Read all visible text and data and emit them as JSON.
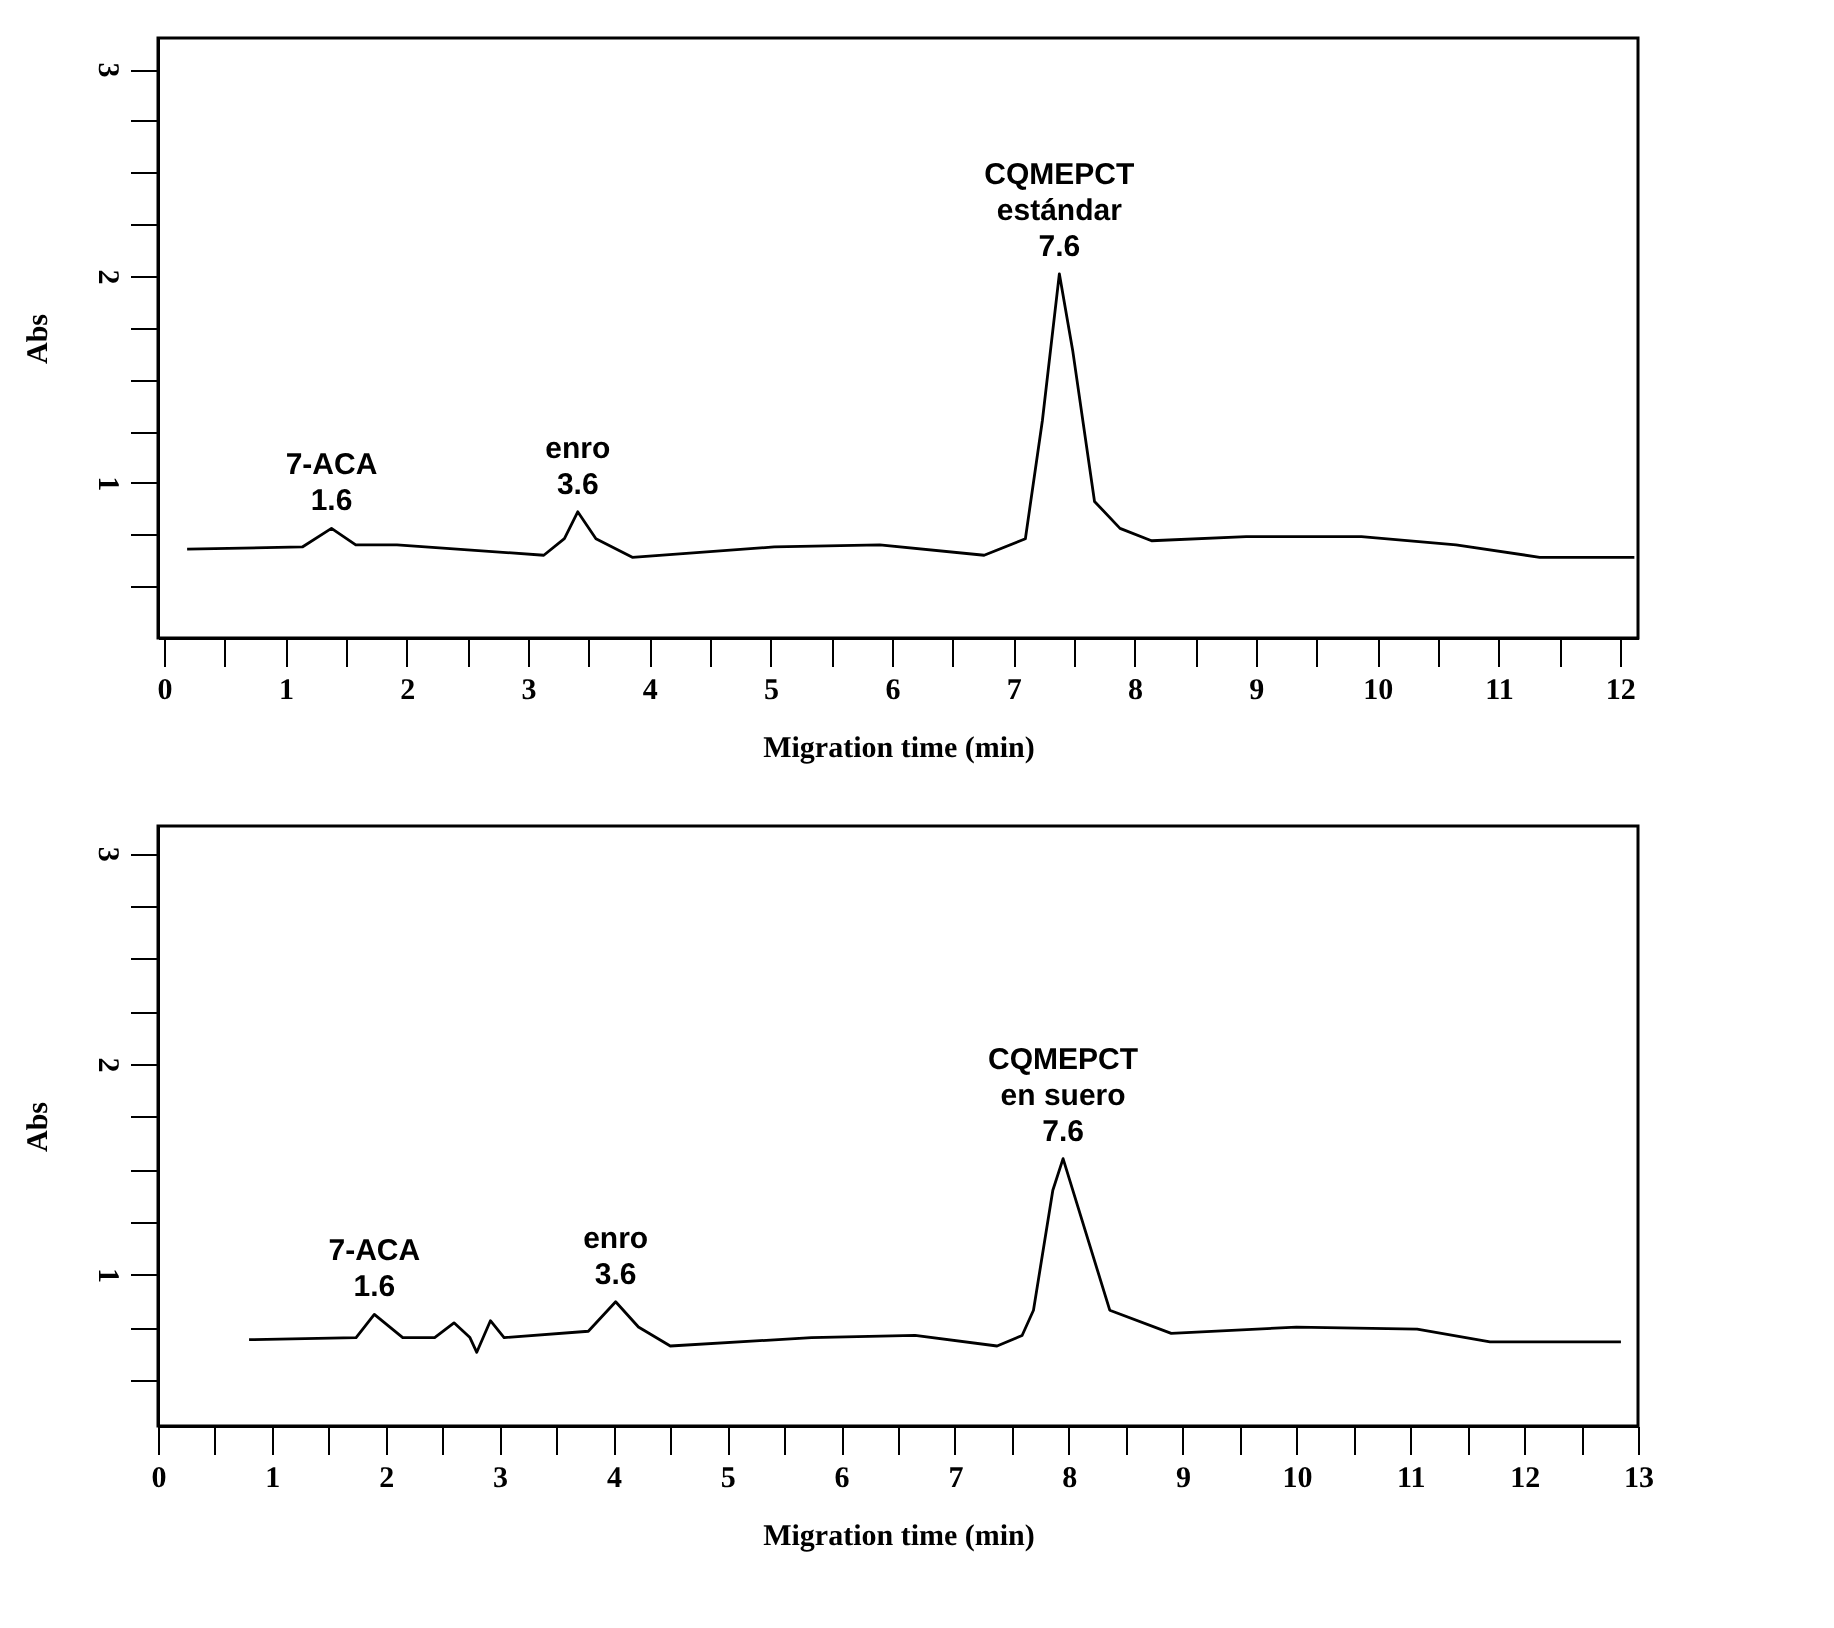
{
  "chart_data": [
    {
      "type": "line",
      "xlabel": "Migration time (min)",
      "ylabel": "Abs",
      "color": "#000000",
      "x": [
        0.19,
        1.14,
        1.38,
        1.58,
        1.92,
        3.13,
        3.3,
        3.41,
        3.56,
        3.86,
        5.03,
        5.9,
        6.76,
        7.1,
        7.24,
        7.38,
        7.49,
        7.67,
        7.88,
        8.14,
        8.92,
        9.87,
        10.65,
        11.34,
        12.12
      ],
      "values": [
        0.68,
        0.69,
        0.78,
        0.7,
        0.7,
        0.65,
        0.73,
        0.86,
        0.73,
        0.64,
        0.69,
        0.7,
        0.65,
        0.73,
        1.3,
        2.01,
        1.64,
        0.91,
        0.78,
        0.72,
        0.74,
        0.74,
        0.7,
        0.64,
        0.64
      ],
      "xlim": [
        -0.05,
        12.15
      ],
      "xticks": [
        0,
        {
          "value": 0.5,
          "label": null
        },
        1,
        {
          "value": 1.5,
          "label": null
        },
        2,
        {
          "value": 2.5,
          "label": null
        },
        3,
        {
          "value": 3.5,
          "label": null
        },
        4,
        {
          "value": 4.5,
          "label": null
        },
        5,
        {
          "value": 5.5,
          "label": null
        },
        6,
        {
          "value": 6.5,
          "label": null
        },
        7,
        {
          "value": 7.5,
          "label": null
        },
        8,
        {
          "value": 8.5,
          "label": null
        },
        9,
        {
          "value": 9.5,
          "label": null
        },
        10,
        {
          "value": 10.5,
          "label": null
        },
        11,
        {
          "value": 11.5,
          "label": null
        },
        12
      ],
      "ylim": [
        0.25,
        3.15
      ],
      "yticks": [
        {
          "value": 0.5,
          "label": null
        },
        {
          "value": 0.75,
          "label": null
        },
        1,
        {
          "value": 1.25,
          "label": null
        },
        {
          "value": 1.5,
          "label": null
        },
        {
          "value": 1.75,
          "label": null
        },
        2,
        {
          "value": 2.25,
          "label": null
        },
        {
          "value": 2.5,
          "label": null
        },
        {
          "value": 2.75,
          "label": null
        },
        3
      ],
      "annotations": [
        {
          "text": "7-ACA",
          "x": 1.38,
          "y": 0.78
        },
        {
          "text": "1.6",
          "x": 1.38,
          "y": 0.78
        },
        {
          "text": "enro",
          "x": 3.41,
          "y": 0.86
        },
        {
          "text": "3.6",
          "x": 3.41,
          "y": 0.86
        },
        {
          "text": "CQMEPCT",
          "x": 7.38,
          "y": 2.01
        },
        {
          "text": "estándar",
          "x": 7.38,
          "y": 2.01
        },
        {
          "text": "7.6",
          "x": 7.38,
          "y": 2.01
        }
      ]
    },
    {
      "type": "line",
      "xlabel": "Migration time (min)",
      "ylabel": "Abs",
      "color": "#000000",
      "x": [
        0.8,
        1.74,
        1.9,
        2.15,
        2.43,
        2.6,
        2.74,
        2.8,
        2.92,
        3.04,
        3.78,
        4.02,
        4.22,
        4.5,
        5.74,
        6.65,
        7.37,
        7.59,
        7.69,
        7.86,
        7.95,
        8.36,
        8.9,
        10.0,
        11.06,
        11.7,
        12.85
      ],
      "values": [
        0.69,
        0.7,
        0.81,
        0.7,
        0.7,
        0.77,
        0.7,
        0.63,
        0.78,
        0.7,
        0.73,
        0.87,
        0.75,
        0.66,
        0.7,
        0.71,
        0.66,
        0.71,
        0.83,
        1.4,
        1.55,
        0.83,
        0.72,
        0.75,
        0.74,
        0.68,
        0.68
      ],
      "xlim": [
        0,
        13
      ],
      "xticks": [
        0,
        {
          "value": 0.5,
          "label": null
        },
        1,
        {
          "value": 1.5,
          "label": null
        },
        2,
        {
          "value": 2.5,
          "label": null
        },
        3,
        {
          "value": 3.5,
          "label": null
        },
        4,
        {
          "value": 4.5,
          "label": null
        },
        5,
        {
          "value": 5.5,
          "label": null
        },
        6,
        {
          "value": 6.5,
          "label": null
        },
        7,
        {
          "value": 7.5,
          "label": null
        },
        8,
        {
          "value": 8.5,
          "label": null
        },
        9,
        {
          "value": 9.5,
          "label": null
        },
        10,
        {
          "value": 10.5,
          "label": null
        },
        11,
        {
          "value": 11.5,
          "label": null
        },
        12,
        {
          "value": 12.5,
          "label": null
        },
        13
      ],
      "ylim": [
        0.28,
        3.13
      ],
      "yticks": [
        {
          "value": 0.5,
          "label": null
        },
        {
          "value": 0.75,
          "label": null
        },
        1,
        {
          "value": 1.25,
          "label": null
        },
        {
          "value": 1.5,
          "label": null
        },
        {
          "value": 1.75,
          "label": null
        },
        2,
        {
          "value": 2.25,
          "label": null
        },
        {
          "value": 2.5,
          "label": null
        },
        {
          "value": 2.75,
          "label": null
        },
        3
      ],
      "annotations": [
        {
          "text": "7-ACA",
          "x": 1.9,
          "y": 0.81
        },
        {
          "text": "1.6",
          "x": 1.9,
          "y": 0.81
        },
        {
          "text": "enro",
          "x": 4.02,
          "y": 0.87
        },
        {
          "text": "3.6",
          "x": 4.02,
          "y": 0.87
        },
        {
          "text": "CQMEPCT",
          "x": 7.95,
          "y": 1.55
        },
        {
          "text": "en suero",
          "x": 7.95,
          "y": 1.55
        },
        {
          "text": "7.6",
          "x": 7.95,
          "y": 1.55
        }
      ]
    }
  ]
}
